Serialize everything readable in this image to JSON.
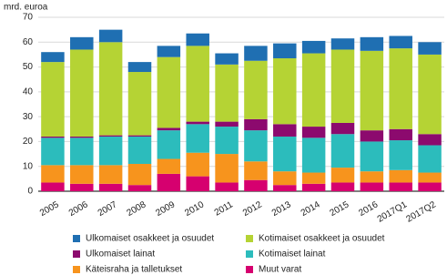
{
  "chart_data": {
    "type": "stacked_bar",
    "y_label": "mrd. euroa",
    "categories": [
      "2005",
      "2006",
      "2007",
      "2008",
      "2009",
      "2010",
      "2011",
      "2012",
      "2013",
      "2014",
      "2015",
      "2016",
      "2017Q1",
      "2017Q2"
    ],
    "series": [
      {
        "name": "Muut varat",
        "color": "#d6006f",
        "values": [
          3.5,
          3,
          3,
          2.5,
          7,
          6,
          3.5,
          4.5,
          2.5,
          3,
          3.5,
          3.5,
          3.5,
          3.5
        ]
      },
      {
        "name": "Käteisraha ja talletukset",
        "color": "#f7941d",
        "values": [
          7,
          7.5,
          7.5,
          8.5,
          6,
          9.5,
          11.5,
          7.5,
          5.5,
          4.5,
          6,
          4.5,
          5,
          4
        ]
      },
      {
        "name": "Kotimaiset lainat",
        "color": "#2cbcbc",
        "values": [
          11,
          11,
          11.5,
          11,
          11.5,
          11.5,
          11,
          12.5,
          14,
          14,
          13.5,
          12,
          12,
          11
        ]
      },
      {
        "name": "Ulkomaiset lainat",
        "color": "#8c0a6e",
        "values": [
          0.5,
          0.5,
          0.5,
          0.5,
          1,
          1,
          2,
          4.5,
          5,
          4.5,
          4.5,
          4.5,
          4.5,
          4.5
        ]
      },
      {
        "name": "Kotimaiset osakkeet ja osuudet",
        "color": "#b5d334",
        "values": [
          30,
          35,
          37.5,
          25.5,
          28.5,
          30.5,
          23,
          23.5,
          26.5,
          29.5,
          29.5,
          32,
          32.5,
          32
        ]
      },
      {
        "name": "Ulkomaiset osakkeet ja osuudet",
        "color": "#1f6fb2",
        "values": [
          4,
          5,
          5,
          4,
          4.5,
          5,
          4.5,
          6,
          6,
          5,
          4.5,
          5.5,
          5,
          5
        ]
      }
    ],
    "ylim": [
      0,
      70
    ],
    "yticks": [
      0,
      10,
      20,
      30,
      40,
      50,
      60,
      70
    ],
    "grid": true
  }
}
